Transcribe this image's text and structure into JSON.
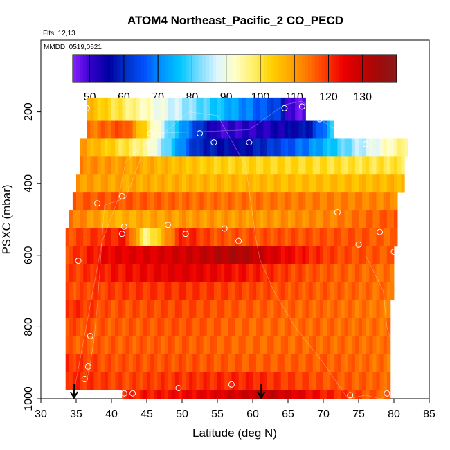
{
  "chart_data": {
    "type": "heatmap",
    "title": "ATOM4 Northeast_Pacific_2 CO_PECD",
    "annotations": {
      "flights": "Flts: 12,13",
      "dates": "MMDD: 0519,0521"
    },
    "xlabel": "Latitude (deg N)",
    "ylabel": "PSXC (mbar)",
    "xlim": [
      30,
      85
    ],
    "ylim": [
      1000,
      0
    ],
    "xticks": [
      30,
      35,
      40,
      45,
      50,
      55,
      60,
      65,
      70,
      75,
      80,
      85
    ],
    "yticks": [
      200,
      400,
      600,
      800,
      1000
    ],
    "colorbar": {
      "min": 45,
      "max": 140,
      "ticks": [
        50,
        60,
        70,
        80,
        90,
        100,
        110,
        120,
        130
      ],
      "colors": [
        "#8b20ff",
        "#3300cc",
        "#0000a0",
        "#0032c8",
        "#0050ff",
        "#0096ff",
        "#00c8ff",
        "#78dcff",
        "#dcf5ff",
        "#ffffc8",
        "#fff06e",
        "#ffd200",
        "#ffaa00",
        "#ff7800",
        "#ff3c00",
        "#ee0000",
        "#c80000",
        "#a00a0a",
        "#8b1a1a"
      ]
    },
    "layers": [
      {
        "p": 200,
        "lat": [
          36.5,
          64,
          65,
          67.5
        ],
        "values": [
          107,
          62,
          48,
          48
        ]
      },
      {
        "p": 250,
        "lat": [
          36.5,
          42,
          48,
          55,
          62,
          68,
          71.5
        ],
        "values": [
          113,
          118,
          82,
          50,
          52,
          58,
          78
        ]
      },
      {
        "p": 300,
        "lat": [
          35.5,
          45,
          52,
          58,
          68,
          75,
          82
        ],
        "values": [
          110,
          95,
          60,
          55,
          70,
          85,
          98
        ]
      },
      {
        "p": 350,
        "lat": [
          35.5,
          45,
          55,
          65,
          75,
          81.5
        ],
        "values": [
          112,
          108,
          103,
          102,
          100,
          100
        ]
      },
      {
        "p": 400,
        "lat": [
          35,
          45,
          55,
          65,
          75,
          81.5
        ],
        "values": [
          110,
          108,
          107,
          106,
          106,
          107
        ]
      },
      {
        "p": 450,
        "lat": [
          34.5,
          40,
          50,
          60,
          70,
          80.5
        ],
        "values": [
          116,
          117,
          115,
          114,
          113,
          112
        ]
      },
      {
        "p": 500,
        "lat": [
          34,
          40,
          50,
          60,
          70,
          80.5
        ],
        "values": [
          114,
          107,
          110,
          110,
          112,
          117
        ]
      },
      {
        "p": 550,
        "lat": [
          33.5,
          42,
          45,
          50,
          55,
          65,
          75,
          80.5
        ],
        "values": [
          117,
          122,
          95,
          122,
          117,
          117,
          117,
          115
        ]
      },
      {
        "p": 600,
        "lat": [
          33.5,
          40,
          50,
          58,
          65,
          72,
          80
        ],
        "values": [
          118,
          125,
          128,
          133,
          124,
          118,
          116
        ]
      },
      {
        "p": 650,
        "lat": [
          33.5,
          40,
          50,
          58,
          68,
          80
        ],
        "values": [
          118,
          122,
          126,
          123,
          117,
          114
        ]
      },
      {
        "p": 700,
        "lat": [
          33.5,
          40,
          50,
          60,
          70,
          80
        ],
        "values": [
          117,
          119,
          120,
          118,
          116,
          114
        ]
      },
      {
        "p": 750,
        "lat": [
          33.5,
          40,
          50,
          60,
          70,
          79.5
        ],
        "values": [
          121,
          117,
          118,
          116,
          115,
          113
        ]
      },
      {
        "p": 800,
        "lat": [
          33.5,
          40,
          50,
          60,
          70,
          79.5
        ],
        "values": [
          118,
          116,
          117,
          115,
          115,
          114
        ]
      },
      {
        "p": 850,
        "lat": [
          33.5,
          40,
          50,
          60,
          70,
          79.5
        ],
        "values": [
          116,
          116,
          116,
          115,
          115,
          114
        ]
      },
      {
        "p": 900,
        "lat": [
          33.5,
          40,
          50,
          60,
          70,
          79.5
        ],
        "values": [
          120,
          117,
          117,
          116,
          116,
          114
        ]
      },
      {
        "p": 950,
        "lat": [
          33.5,
          42,
          50,
          60,
          70,
          79.5
        ],
        "values": [
          121,
          118,
          120,
          121,
          117,
          115
        ]
      },
      {
        "p": 1000,
        "lat": [
          41.5,
          48,
          55,
          62,
          68,
          76,
          79.5
        ],
        "values": [
          121,
          123,
          126,
          131,
          124,
          117,
          115
        ]
      }
    ],
    "flight_profiles": [
      {
        "lat": [
          34.5,
          38.7,
          41,
          42,
          44,
          48,
          51,
          55,
          59,
          60.5,
          61,
          63,
          66,
          70,
          73.5,
          76,
          78,
          80,
          80.5,
          79,
          78.5,
          76
        ],
        "p": [
          1000,
          560,
          440,
          340,
          300,
          250,
          200,
          210,
          350,
          560,
          610,
          700,
          800,
          900,
          1000,
          990,
          1000,
          990,
          900,
          800,
          700,
          600
        ]
      },
      {
        "lat": [
          36.5,
          37,
          37.5,
          38,
          39,
          42,
          45.5,
          52.5,
          59.5,
          64.5,
          67,
          69.5,
          72.5,
          76
        ],
        "p": [
          950,
          900,
          840,
          740,
          460,
          440,
          260,
          255,
          250,
          180,
          170,
          220,
          260,
          290
        ]
      }
    ],
    "markers": [
      {
        "lat": 36.5,
        "p": 190
      },
      {
        "lat": 45.5,
        "p": 260
      },
      {
        "lat": 52.5,
        "p": 260
      },
      {
        "lat": 54.5,
        "p": 285
      },
      {
        "lat": 59.5,
        "p": 285
      },
      {
        "lat": 64.5,
        "p": 190
      },
      {
        "lat": 67,
        "p": 185
      },
      {
        "lat": 69.5,
        "p": 220
      },
      {
        "lat": 76,
        "p": 290
      },
      {
        "lat": 38,
        "p": 455
      },
      {
        "lat": 41.5,
        "p": 435
      },
      {
        "lat": 41.8,
        "p": 520
      },
      {
        "lat": 41.5,
        "p": 540
      },
      {
        "lat": 48,
        "p": 515
      },
      {
        "lat": 50.5,
        "p": 540
      },
      {
        "lat": 56,
        "p": 525
      },
      {
        "lat": 58,
        "p": 560
      },
      {
        "lat": 72,
        "p": 480
      },
      {
        "lat": 75,
        "p": 570
      },
      {
        "lat": 78,
        "p": 535
      },
      {
        "lat": 80,
        "p": 590
      },
      {
        "lat": 35.3,
        "p": 615
      },
      {
        "lat": 37,
        "p": 825
      },
      {
        "lat": 36.7,
        "p": 910
      },
      {
        "lat": 36.2,
        "p": 945
      },
      {
        "lat": 41.8,
        "p": 985
      },
      {
        "lat": 43,
        "p": 985
      },
      {
        "lat": 49.5,
        "p": 970
      },
      {
        "lat": 57,
        "p": 960
      },
      {
        "lat": 73.8,
        "p": 990
      },
      {
        "lat": 79,
        "p": 985
      }
    ],
    "arrows": [
      34.7,
      61.2
    ]
  }
}
